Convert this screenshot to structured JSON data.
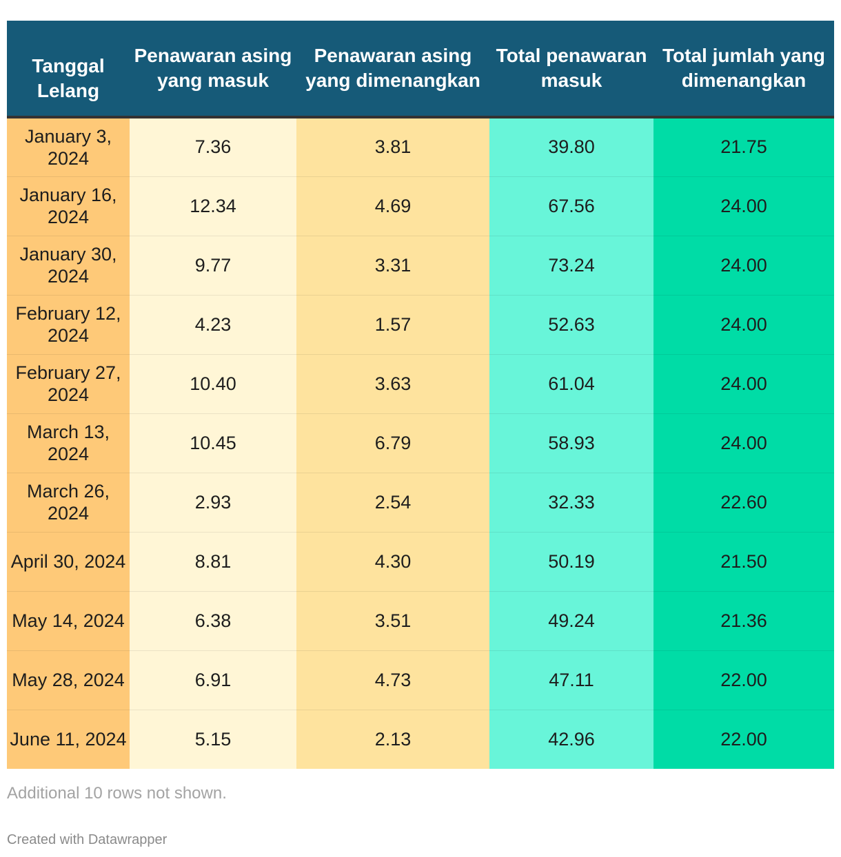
{
  "chart_data": {
    "type": "table",
    "columns": [
      "Tanggal Lelang",
      "Penawaran asing yang masuk",
      "Penawaran asing yang dimenangkan",
      "Total penawaran masuk",
      "Total jumlah yang dimenangkan"
    ],
    "column_colors": [
      "#fec978",
      "#fff6d6",
      "#fee39e",
      "#68f5d9",
      "#00dca6"
    ],
    "header_color": "#165a78",
    "rows": [
      [
        "January 3, 2024",
        "7.36",
        "3.81",
        "39.80",
        "21.75"
      ],
      [
        "January 16, 2024",
        "12.34",
        "4.69",
        "67.56",
        "24.00"
      ],
      [
        "January 30, 2024",
        "9.77",
        "3.31",
        "73.24",
        "24.00"
      ],
      [
        "February 12, 2024",
        "4.23",
        "1.57",
        "52.63",
        "24.00"
      ],
      [
        "February 27, 2024",
        "10.40",
        "3.63",
        "61.04",
        "24.00"
      ],
      [
        "March 13, 2024",
        "10.45",
        "6.79",
        "58.93",
        "24.00"
      ],
      [
        "March 26, 2024",
        "2.93",
        "2.54",
        "32.33",
        "22.60"
      ],
      [
        "April 30, 2024",
        "8.81",
        "4.30",
        "50.19",
        "21.50"
      ],
      [
        "May 14, 2024",
        "6.38",
        "3.51",
        "49.24",
        "21.36"
      ],
      [
        "May 28, 2024",
        "6.91",
        "4.73",
        "47.11",
        "22.00"
      ],
      [
        "June 11, 2024",
        "5.15",
        "2.13",
        "42.96",
        "22.00"
      ]
    ]
  },
  "footer": {
    "note": "Additional 10 rows not shown.",
    "credit": "Created with Datawrapper"
  }
}
